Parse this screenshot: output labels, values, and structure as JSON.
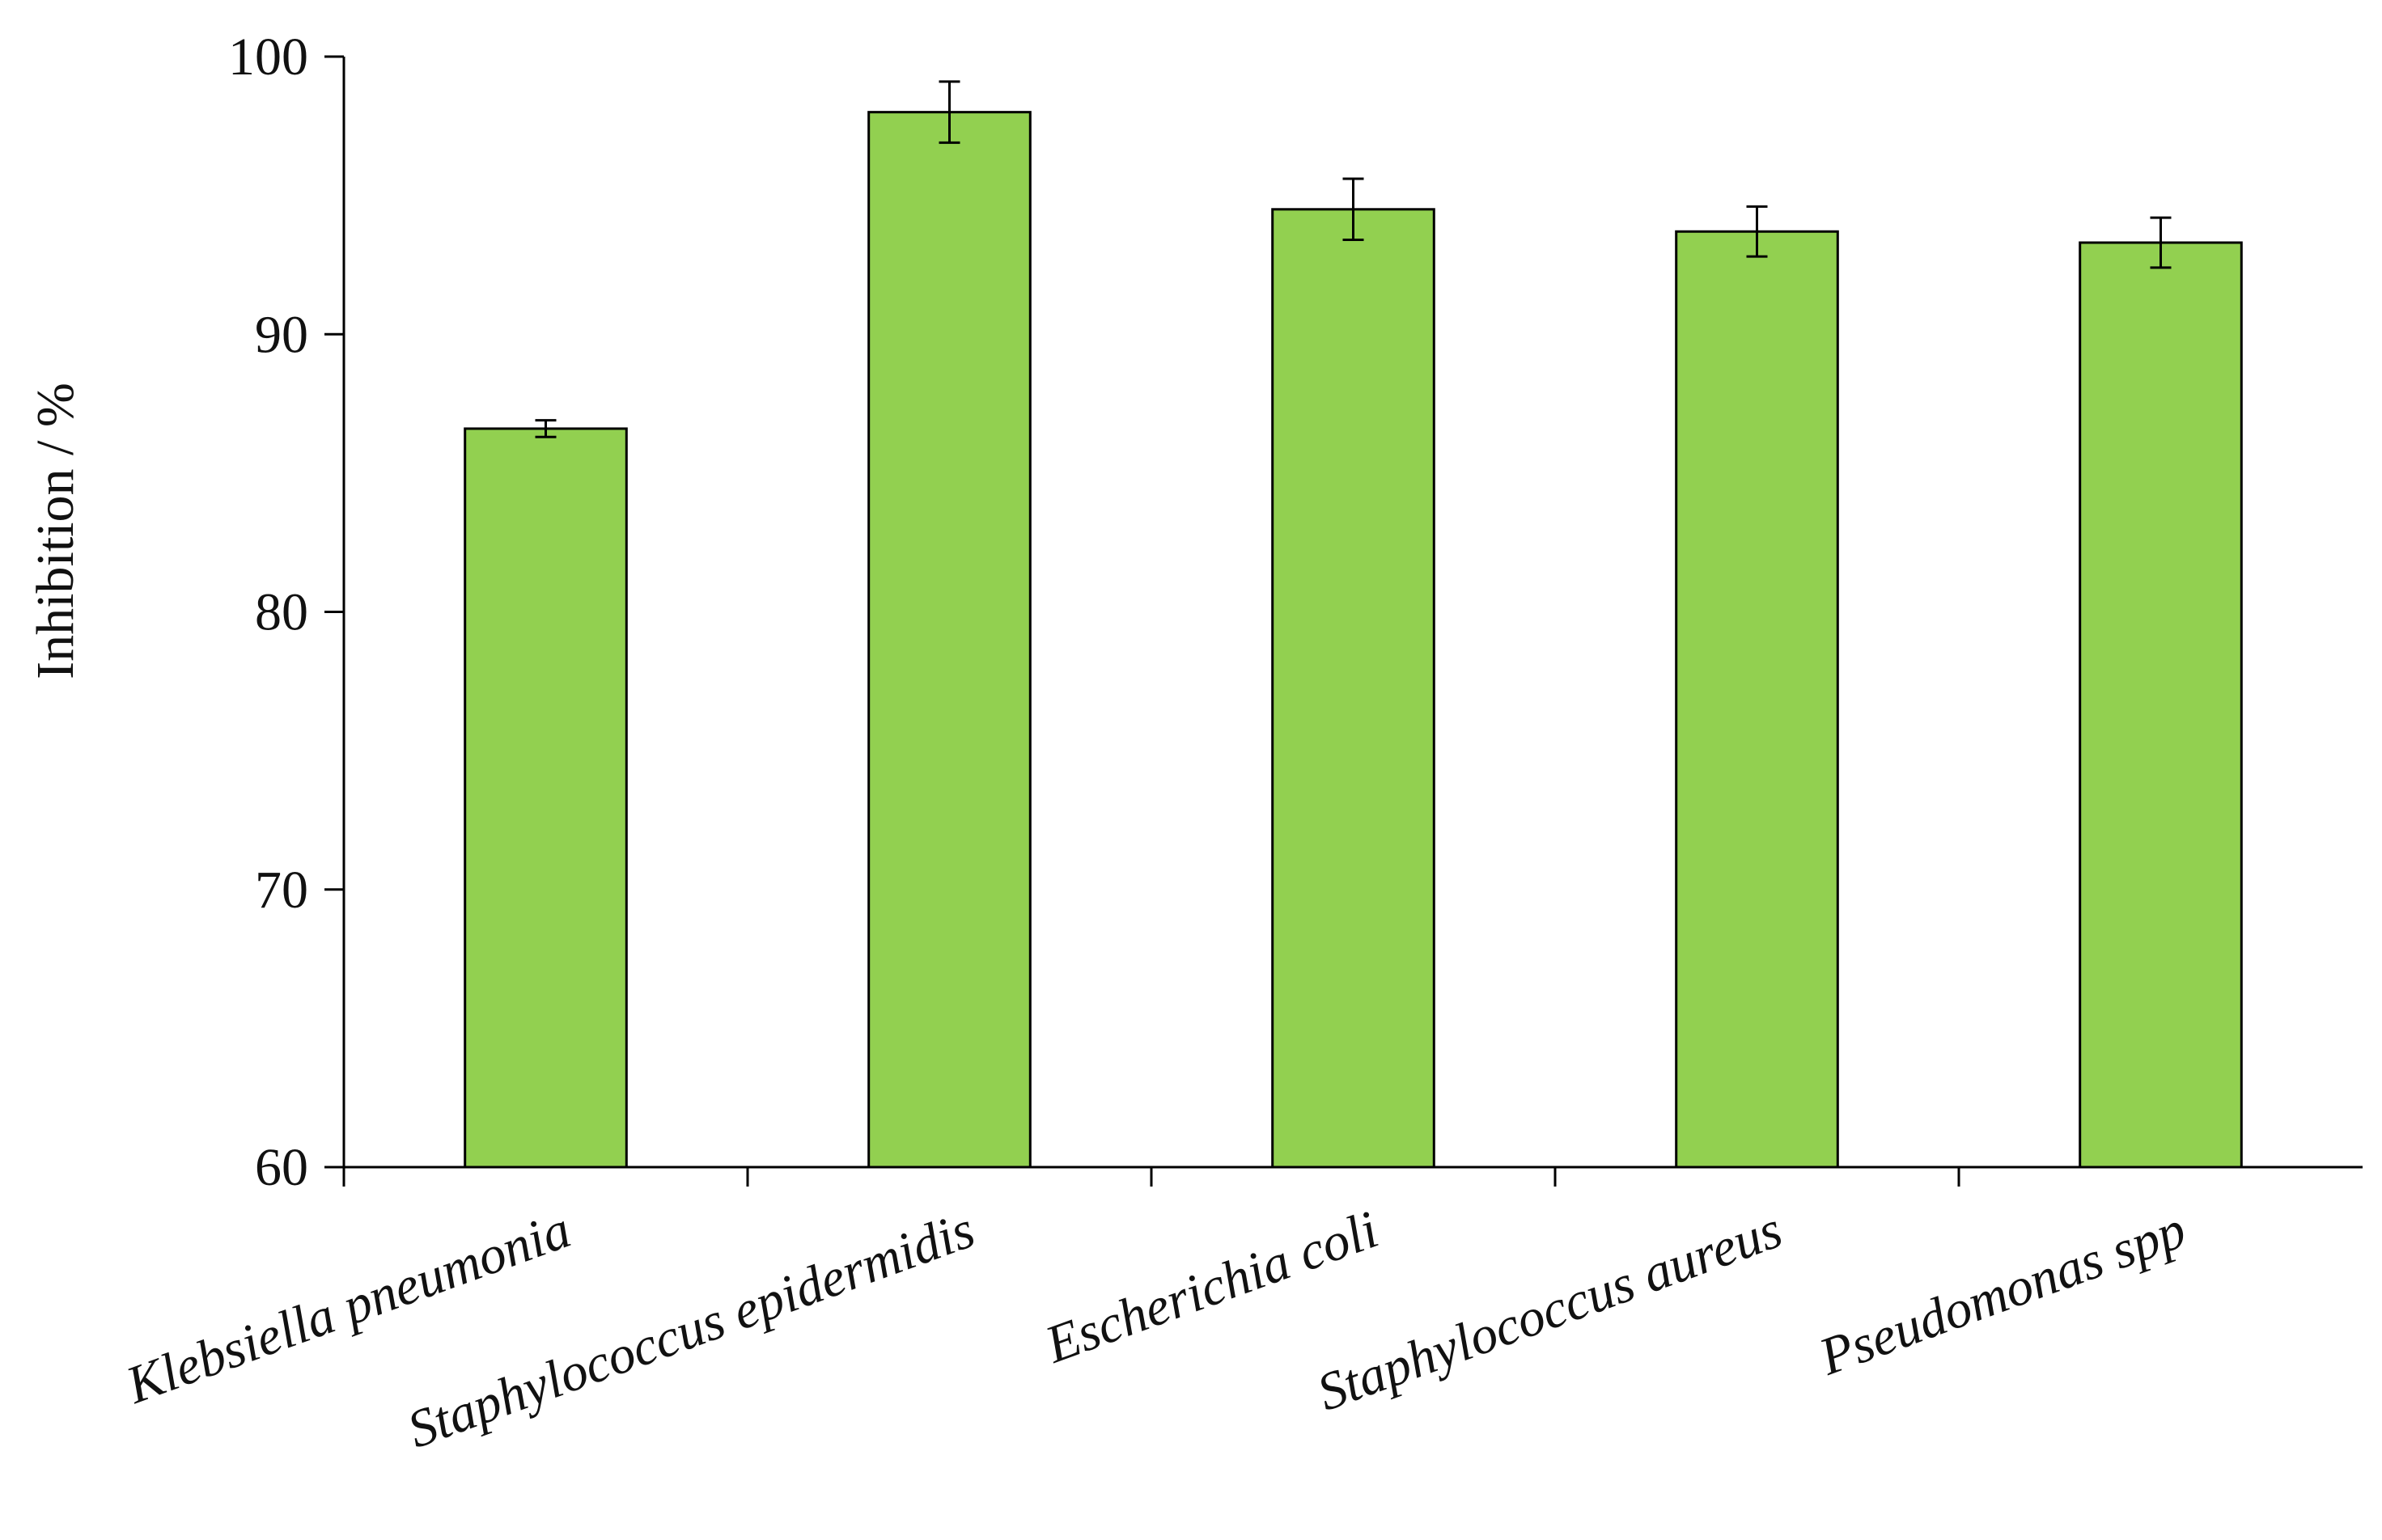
{
  "chart_data": {
    "type": "bar",
    "title": "",
    "xlabel": "",
    "ylabel": "Inhibition  / %",
    "categories": [
      "Klebsiella pneumonia",
      "Staphylococcus epidermidis",
      "Escherichia coli",
      "Staphylococcus aureus",
      "Pseudomonas spp"
    ],
    "values": [
      86.6,
      98.0,
      94.5,
      93.7,
      93.3
    ],
    "errors": [
      0.3,
      1.1,
      1.1,
      0.9,
      0.9
    ],
    "ylim": [
      60,
      100
    ],
    "yticks": [
      60,
      70,
      80,
      90,
      100
    ],
    "ytick_labels": [
      "60",
      "70",
      "80",
      "90",
      "100"
    ],
    "grid": false,
    "legend": "none",
    "bar_color": "#92d050",
    "bar_edge_color": "#000000"
  }
}
